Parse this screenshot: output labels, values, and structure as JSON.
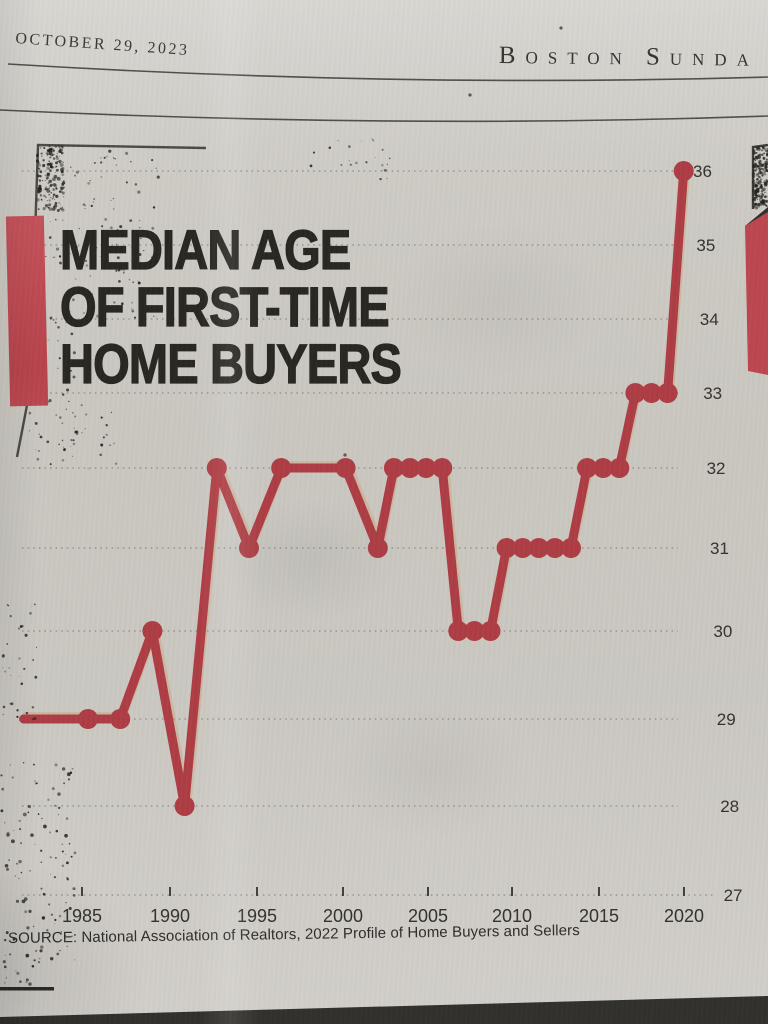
{
  "header": {
    "date": "OCTOBER 29, 2023",
    "masthead": {
      "b": "B",
      "oston": "OSTON",
      "s": "S",
      "unda": "UNDA"
    }
  },
  "chart": {
    "title_line1": "MEDIAN AGE",
    "title_line2": "OF FIRST-TIME",
    "title_line3": "HOME BUYERS",
    "source": "SOURCE: National Association of Realtors, 2022 Profile of Home Buyers and Sellers"
  },
  "chart_data": {
    "type": "line",
    "title": "MEDIAN AGE OF FIRST-TIME HOME BUYERS",
    "series": [
      {
        "name": "Median age of first-time home buyers",
        "x": [
          1981,
          1985,
          1987,
          1989,
          1991,
          1993,
          1995,
          1997,
          2001,
          2003,
          2004,
          2005,
          2006,
          2007,
          2008,
          2009,
          2010,
          2011,
          2012,
          2013,
          2014,
          2015,
          2016,
          2017,
          2018,
          2019,
          2020,
          2021,
          2022
        ],
        "y": [
          29,
          29,
          29,
          30,
          28,
          32,
          31,
          32,
          32,
          31,
          32,
          32,
          32,
          32,
          30,
          30,
          30,
          31,
          31,
          31,
          31,
          31,
          32,
          32,
          32,
          33,
          33,
          33,
          36
        ],
        "first_point_marker": false,
        "marker": "filled-circle"
      }
    ],
    "x_ticks": [
      1985,
      1990,
      1995,
      2000,
      2005,
      2010,
      2015,
      2020
    ],
    "y_ticks": [
      36,
      35,
      34,
      33,
      32,
      31,
      30,
      29,
      28,
      27
    ],
    "xlim": [
      1981,
      2023
    ],
    "ylim": [
      27,
      36
    ],
    "xlabel": "",
    "ylabel": "",
    "grid": "horizontal dotted gridlines at every integer age, y labels on right",
    "legend_position": "none",
    "line_color": "#ae3d45"
  },
  "colors": {
    "paper": "#cbc8c2",
    "line_red": "#ae3d45",
    "accent_bar_red": "#c04b54",
    "ink": "#292722",
    "grid_gray": "#837f77",
    "bottom_band": "#31302c",
    "right_block_red": "#bc4750"
  }
}
